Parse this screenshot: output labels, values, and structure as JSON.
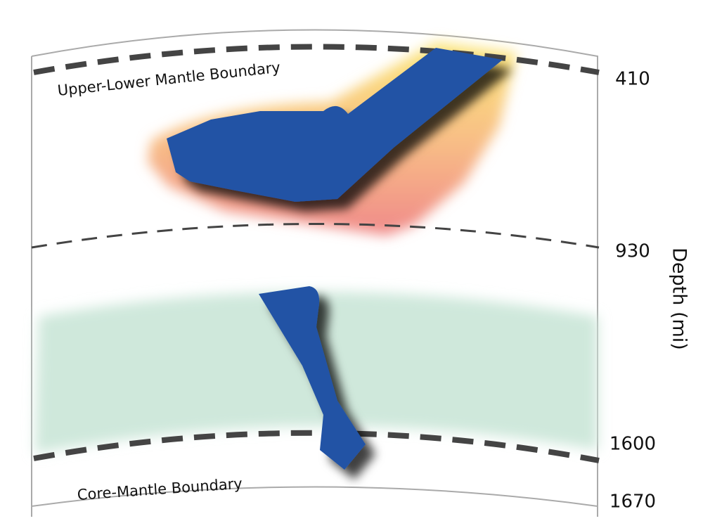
{
  "diagram": {
    "boundaries": {
      "upper": "Upper-Lower Mantle Boundary",
      "core": "Core-Mantle Boundary"
    },
    "depth_labels": [
      410,
      930,
      1600,
      1670
    ],
    "axis_label": "Depth (mi)"
  }
}
